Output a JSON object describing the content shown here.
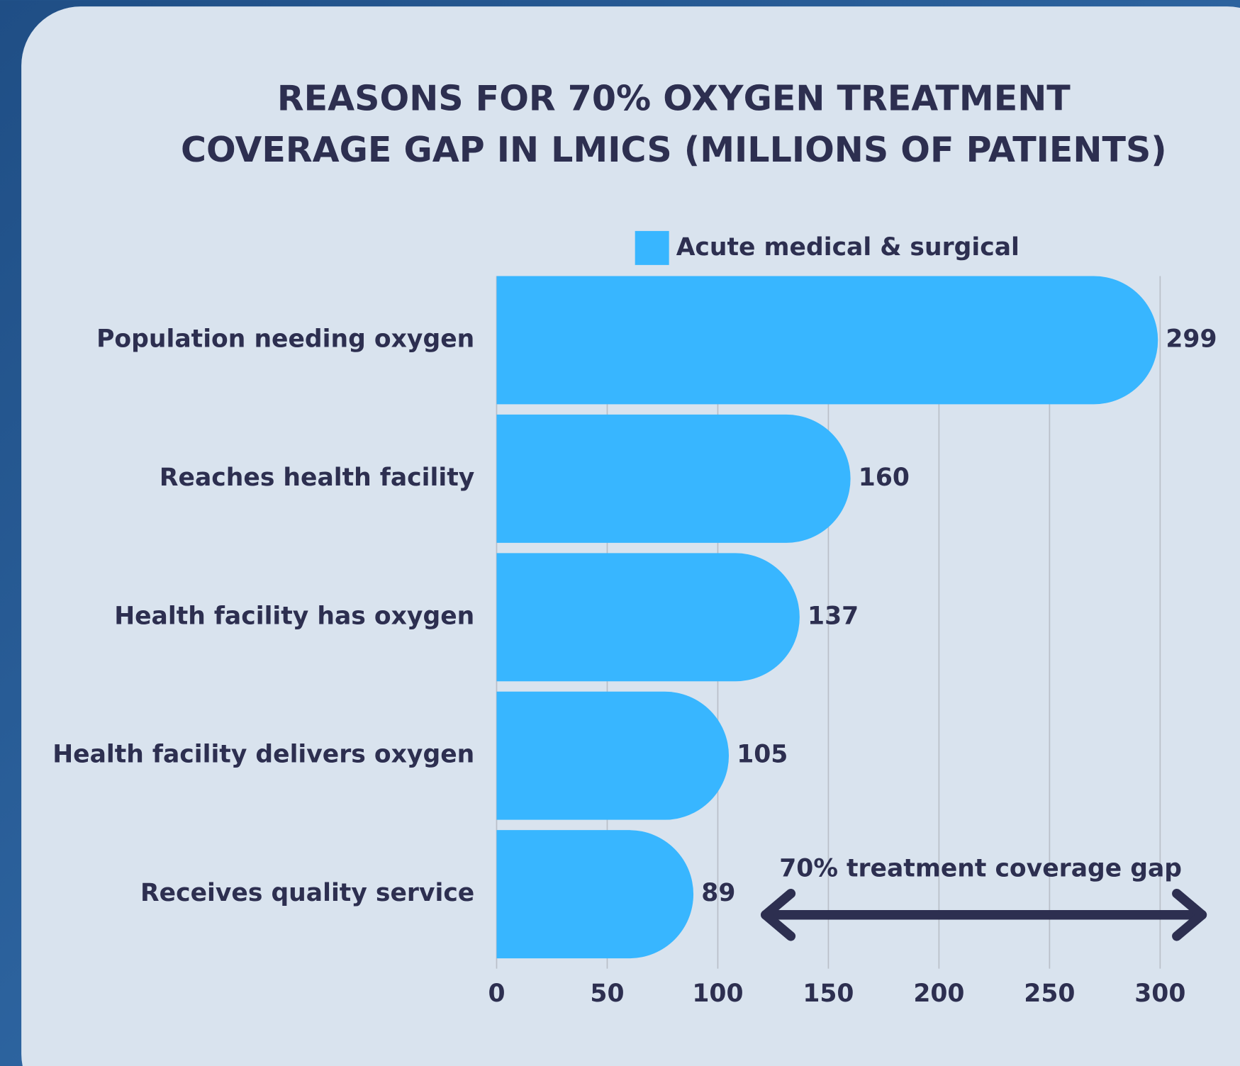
{
  "chart_data": {
    "type": "bar",
    "orientation": "horizontal",
    "title": [
      "REASONS FOR 70% OXYGEN TREATMENT",
      "COVERAGE GAP IN LMICS (MILLIONS OF PATIENTS)"
    ],
    "categories": [
      "Population needing oxygen",
      "Reaches health facility",
      "Health facility has oxygen",
      "Health facility delivers oxygen",
      "Receives quality service"
    ],
    "series": [
      {
        "name": "Acute medical & surgical",
        "color": "#38b6ff",
        "values": [
          299,
          160,
          137,
          105,
          89
        ]
      }
    ],
    "xlim": [
      0,
      300
    ],
    "xticks": [
      0,
      50,
      100,
      150,
      200,
      250,
      300
    ],
    "grid": true,
    "annotation": "70% treatment coverage gap"
  }
}
